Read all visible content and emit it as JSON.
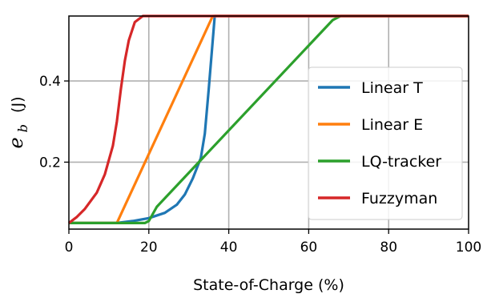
{
  "chart_data": {
    "type": "line",
    "xlabel": "State-of-Charge (%)",
    "ylabel_symbol": "e",
    "ylabel_subscript": "b",
    "ylabel_unit": "(J)",
    "xlim": [
      0,
      100
    ],
    "ylim": [
      0.035,
      0.56
    ],
    "xticks": [
      0,
      20,
      40,
      60,
      80,
      100
    ],
    "yticks": [
      0.2,
      0.4
    ],
    "grid": true,
    "legend_position": "right",
    "series": [
      {
        "name": "Linear T",
        "color": "#1f77b4",
        "points": [
          [
            0,
            0.05
          ],
          [
            12,
            0.05
          ],
          [
            16,
            0.055
          ],
          [
            20,
            0.062
          ],
          [
            24,
            0.075
          ],
          [
            27,
            0.095
          ],
          [
            29,
            0.12
          ],
          [
            31,
            0.16
          ],
          [
            33,
            0.21
          ],
          [
            34,
            0.27
          ],
          [
            35,
            0.38
          ],
          [
            36,
            0.5
          ],
          [
            36.5,
            0.56
          ],
          [
            100,
            0.56
          ]
        ]
      },
      {
        "name": "Linear E",
        "color": "#ff7f0e",
        "points": [
          [
            0,
            0.05
          ],
          [
            12,
            0.05
          ],
          [
            36,
            0.56
          ],
          [
            100,
            0.56
          ]
        ]
      },
      {
        "name": "LQ-tracker",
        "color": "#2ca02c",
        "points": [
          [
            0,
            0.05
          ],
          [
            19,
            0.05
          ],
          [
            20,
            0.055
          ],
          [
            22,
            0.09
          ],
          [
            66,
            0.55
          ],
          [
            68,
            0.56
          ],
          [
            100,
            0.56
          ]
        ]
      },
      {
        "name": "Fuzzyman",
        "color": "#d62728",
        "points": [
          [
            0,
            0.05
          ],
          [
            2,
            0.065
          ],
          [
            4,
            0.085
          ],
          [
            7,
            0.125
          ],
          [
            9,
            0.17
          ],
          [
            11,
            0.24
          ],
          [
            12,
            0.3
          ],
          [
            13,
            0.38
          ],
          [
            14,
            0.45
          ],
          [
            15,
            0.5
          ],
          [
            16.5,
            0.545
          ],
          [
            18.5,
            0.56
          ],
          [
            100,
            0.56
          ]
        ]
      }
    ]
  }
}
